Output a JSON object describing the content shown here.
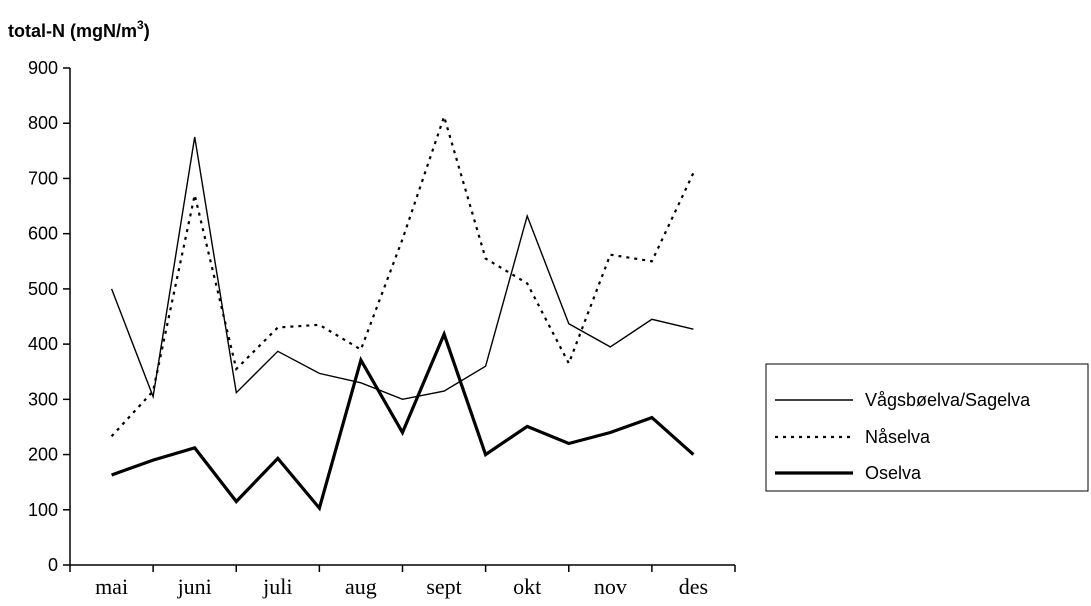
{
  "chart_data": {
    "type": "line",
    "title": "",
    "xlabel": "",
    "ylabel": "total-N (mgN/m",
    "ylabel_sup": "3",
    "ylabel_close": ")",
    "ylim": [
      0,
      900
    ],
    "yticks": [
      0,
      100,
      200,
      300,
      400,
      500,
      600,
      700,
      800,
      900
    ],
    "categories": [
      "mai",
      "juni",
      "juli",
      "aug",
      "sept",
      "okt",
      "nov",
      "des"
    ],
    "x": [
      0.5,
      1.0,
      1.5,
      2.0,
      2.5,
      3.0,
      3.5,
      4.0,
      4.5,
      5.0,
      5.5,
      6.0,
      6.5,
      7.0,
      7.5
    ],
    "grid": false,
    "legend_position": "right",
    "series": [
      {
        "name": "Vågsbøelva/Sagelva",
        "style": "thin-solid",
        "color": "#000000",
        "values": [
          500,
          305,
          775,
          312,
          387,
          347,
          330,
          300,
          315,
          360,
          632,
          437,
          395,
          445,
          427
        ]
      },
      {
        "name": "Nåselva",
        "style": "dotted",
        "color": "#000000",
        "values": [
          233,
          315,
          670,
          355,
          430,
          435,
          390,
          590,
          812,
          555,
          510,
          365,
          562,
          550,
          710
        ]
      },
      {
        "name": "Oselva",
        "style": "thick-solid",
        "color": "#000000",
        "values": [
          163,
          190,
          212,
          115,
          193,
          103,
          371,
          240,
          418,
          200,
          251,
          220,
          240,
          267,
          200
        ]
      }
    ]
  }
}
